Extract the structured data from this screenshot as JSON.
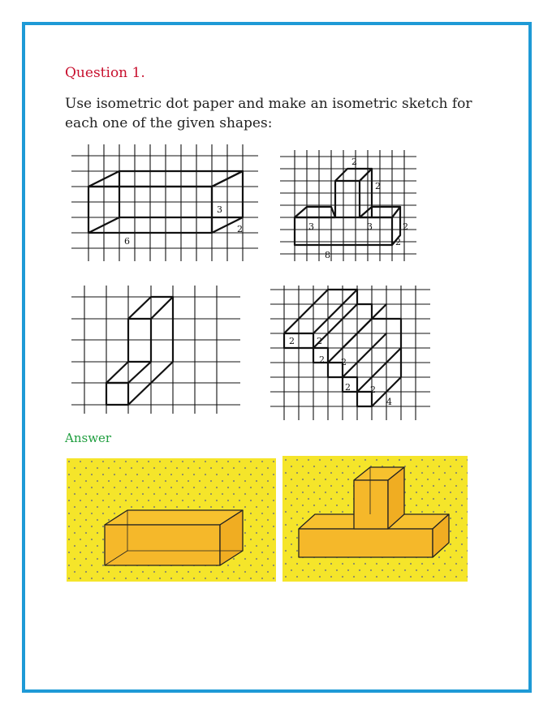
{
  "question": {
    "title": "Question 1.",
    "text": "Use isometric dot paper and make an isometric sketch for each one of the given shapes:"
  },
  "figures": {
    "fig1": {
      "labels": [
        "3",
        "2",
        "6"
      ]
    },
    "fig2": {
      "labels": [
        "2",
        "2",
        "3",
        "3",
        "2",
        "2",
        "8"
      ]
    },
    "fig3": {
      "labels": []
    },
    "fig4": {
      "labels": [
        "2",
        "2",
        "2",
        "2",
        "2",
        "2",
        "4"
      ]
    }
  },
  "answer": {
    "title": "Answer"
  },
  "colors": {
    "frame": "#1e9ad6",
    "question_title": "#c8102e",
    "answer_title": "#1f9e3f",
    "dot_paper": "#f5e52a",
    "solid_fill": "#f7c12e"
  }
}
